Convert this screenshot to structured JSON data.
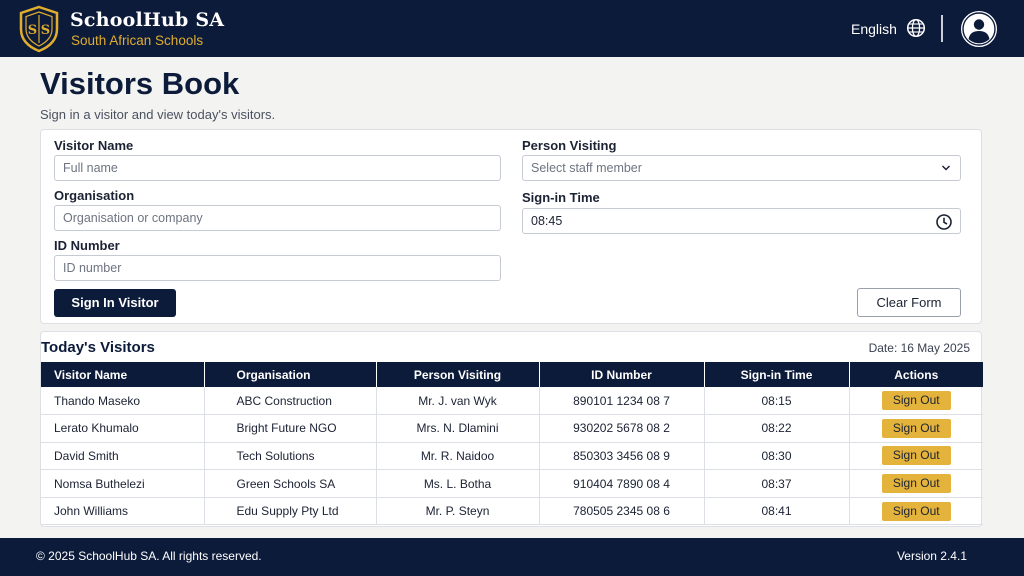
{
  "header": {
    "brand_name": "SchoolHub SA",
    "brand_tagline": "South African Schools",
    "logo_icon": "shield-ss-logo",
    "language": "English",
    "globe_icon": "globe-icon",
    "avatar_icon": "user-avatar-icon"
  },
  "page": {
    "title": "Visitors Book",
    "subtitle": "Sign in a visitor and view today's visitors."
  },
  "form": {
    "visitor_name": {
      "label": "Visitor Name",
      "placeholder": "Full name"
    },
    "organisation": {
      "label": "Organisation",
      "placeholder": "Organisation or company"
    },
    "id_number": {
      "label": "ID Number",
      "placeholder": "ID number"
    },
    "person_visiting": {
      "label": "Person Visiting",
      "placeholder": "Select staff member"
    },
    "signin_time": {
      "label": "Sign-in Time",
      "value": "08:45"
    },
    "submit_label": "Sign In Visitor",
    "clear_label": "Clear Form"
  },
  "visitors": {
    "title": "Today's Visitors",
    "date": "Date: 16 May 2025",
    "columns": [
      "Visitor Name",
      "Organisation",
      "Person Visiting",
      "ID Number",
      "Sign-in Time",
      "Actions"
    ],
    "rows": [
      {
        "name": "Thando Maseko",
        "org": "ABC Construction",
        "visiting": "Mr. J. van Wyk",
        "id": "890101 1234 08 7",
        "time": "08:15",
        "action": "Sign Out"
      },
      {
        "name": "Lerato Khumalo",
        "org": "Bright Future NGO",
        "visiting": "Mrs. N. Dlamini",
        "id": "930202 5678 08 2",
        "time": "08:22",
        "action": "Sign Out"
      },
      {
        "name": "David Smith",
        "org": "Tech Solutions",
        "visiting": "Mr. R. Naidoo",
        "id": "850303 3456 08 9",
        "time": "08:30",
        "action": "Sign Out"
      },
      {
        "name": "Nomsa Buthelezi",
        "org": "Green Schools SA",
        "visiting": "Ms. L. Botha",
        "id": "910404 7890 08 4",
        "time": "08:37",
        "action": "Sign Out"
      },
      {
        "name": "John Williams",
        "org": "Edu Supply Pty Ltd",
        "visiting": "Mr. P. Steyn",
        "id": "780505 2345 08 6",
        "time": "08:41",
        "action": "Sign Out"
      }
    ]
  },
  "footer": {
    "copyright": "© 2025 SchoolHub SA. All rights reserved.",
    "version": "Version 2.4.1"
  },
  "colors": {
    "navy": "#0d1b3a",
    "gold": "#e0ad2e",
    "button_gold": "#e4b33b"
  }
}
